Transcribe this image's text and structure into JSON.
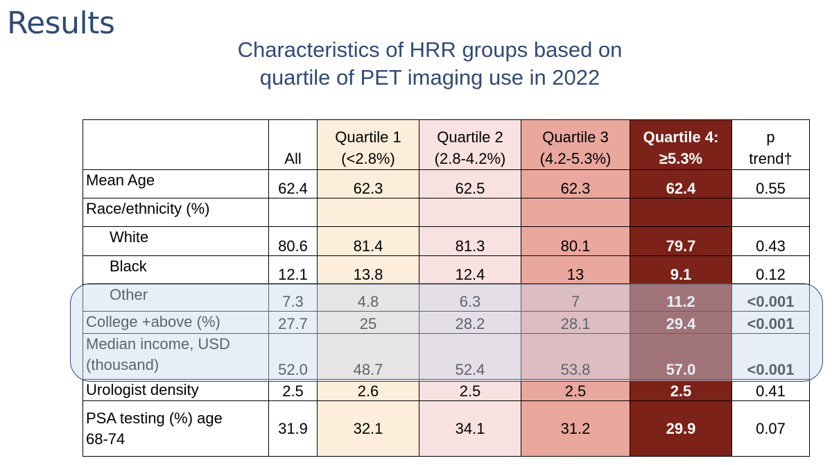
{
  "slide": {
    "title": "Results",
    "subtitle_line1": "Characteristics of HRR groups based on",
    "subtitle_line2": "quartile of PET imaging use in 2022"
  },
  "table": {
    "headers": {
      "all": "All",
      "q1_line1": "Quartile 1",
      "q1_line2": "(<2.8%)",
      "q2_line1": "Quartile 2",
      "q2_line2": "(2.8-4.2%)",
      "q3_line1": "Quartile 3",
      "q3_line2": "(4.2-5.3%)",
      "q4_line1": "Quartile 4:",
      "q4_line2": "≥5.3%",
      "p_line1": "p",
      "p_line2": "trend†"
    },
    "rows": [
      {
        "label": "Mean Age",
        "all": "62.4",
        "q1": "62.3",
        "q2": "62.5",
        "q3": "62.3",
        "q4": "62.4",
        "p": "0.55"
      },
      {
        "label": "Race/ethnicity (%)",
        "all": "",
        "q1": "",
        "q2": "",
        "q3": "",
        "q4": "",
        "p": ""
      },
      {
        "label": "White",
        "all": "80.6",
        "q1": "81.4",
        "q2": "81.3",
        "q3": "80.1",
        "q4": "79.7",
        "p": "0.43"
      },
      {
        "label": "Black",
        "all": "12.1",
        "q1": "13.8",
        "q2": "12.4",
        "q3": "13",
        "q4": "9.1",
        "p": "0.12"
      },
      {
        "label": "Other",
        "all": "7.3",
        "q1": "4.8",
        "q2": "6.3",
        "q3": "7",
        "q4": "11.2",
        "p": "<0.001"
      },
      {
        "label": "College +above (%)",
        "all": "27.7",
        "q1": "25",
        "q2": "28.2",
        "q3": "28.1",
        "q4": "29.4",
        "p": "<0.001"
      },
      {
        "label_line1": "Median income, USD",
        "label_line2": "(thousand)",
        "all": "52.0",
        "q1": "48.7",
        "q2": "52.4",
        "q3": "53.8",
        "q4": "57.0",
        "p": "<0.001"
      },
      {
        "label": "Urologist density",
        "all": "2.5",
        "q1": "2.6",
        "q2": "2.5",
        "q3": "2.5",
        "q4": "2.5",
        "p": "0.41"
      },
      {
        "label_line1": "PSA testing (%) age",
        "label_line2": "68-74",
        "all": "31.9",
        "q1": "32.1",
        "q2": "34.1",
        "q3": "31.2",
        "q4": "29.9",
        "p": "0.07"
      }
    ]
  },
  "colors": {
    "title": "#2f4a78",
    "quartile1": "#fdeedb",
    "quartile2": "#f7e2e1",
    "quartile3": "#e9a79d",
    "quartile4": "#7c2218",
    "highlight_box": "#cddaf0"
  }
}
